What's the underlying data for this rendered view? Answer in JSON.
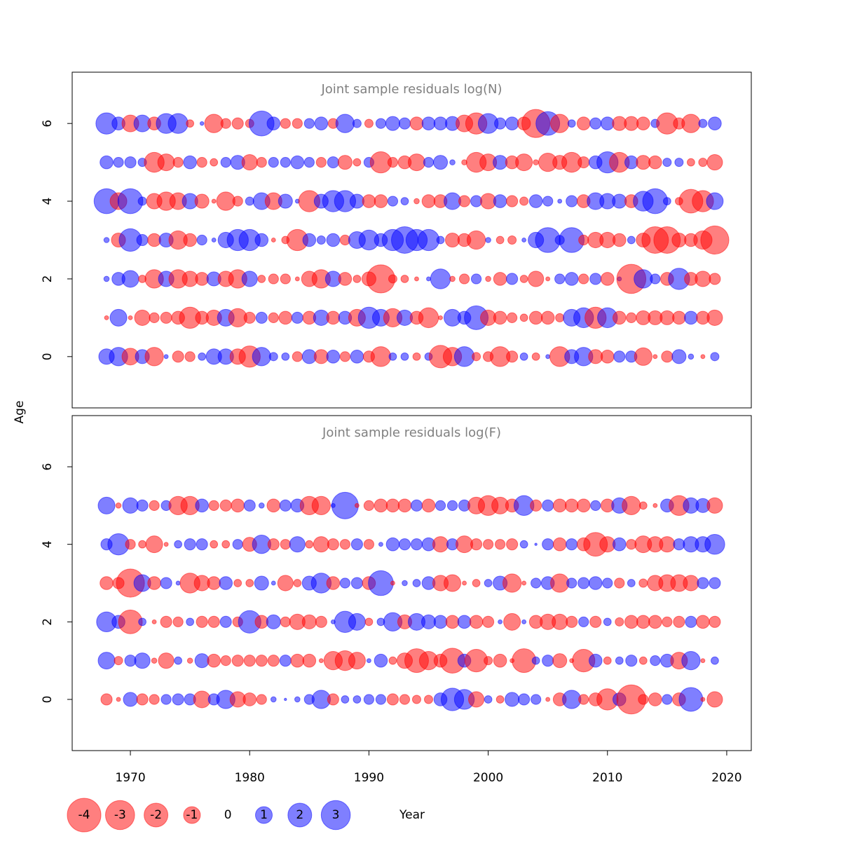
{
  "chart_data": [
    {
      "type": "bubble",
      "title": "Joint sample residuals log(N)",
      "x": [
        1968,
        1969,
        1970,
        1971,
        1972,
        1973,
        1974,
        1975,
        1976,
        1977,
        1978,
        1979,
        1980,
        1981,
        1982,
        1983,
        1984,
        1985,
        1986,
        1987,
        1988,
        1989,
        1990,
        1991,
        1992,
        1993,
        1994,
        1995,
        1996,
        1997,
        1998,
        1999,
        2000,
        2001,
        2002,
        2003,
        2004,
        2005,
        2006,
        2007,
        2008,
        2009,
        2010,
        2011,
        2012,
        2013,
        2014,
        2015,
        2016,
        2017,
        2018,
        2019
      ],
      "ages": [
        0,
        1,
        2,
        3,
        4,
        5,
        6
      ],
      "values": [
        [
          0.85,
          1.2,
          -1,
          0.7,
          -1.2,
          0.06,
          -0.45,
          -0.35,
          0.2,
          0.85,
          0.85,
          -0.85,
          -1.6,
          1.2,
          0.25,
          0.2,
          -0.35,
          0.7,
          -0.7,
          0.6,
          -0.35,
          0.6,
          -0.45,
          -1.4,
          0.2,
          0.2,
          -0.2,
          0.2,
          -1.8,
          -1.2,
          1.4,
          -0.25,
          -0.35,
          -1.4,
          -0.45,
          0.2,
          -0.2,
          0.06,
          -1.4,
          0.7,
          1.2,
          -0.7,
          -0.6,
          0.45,
          0.45,
          -1.1,
          -0.06,
          -0.45,
          0.7,
          0.1,
          -0.06,
          0.25
        ],
        [
          -0.06,
          1,
          -0.06,
          -0.85,
          -0.35,
          -0.45,
          -0.6,
          -1.6,
          -0.6,
          -0.85,
          1,
          -1.2,
          -0.45,
          0.45,
          -0.35,
          -0.6,
          0.45,
          -0.6,
          0.85,
          -0.6,
          0.6,
          -1,
          1.6,
          1,
          -1.2,
          0.85,
          -0.6,
          -1.4,
          -0.06,
          1,
          0.6,
          2,
          -0.85,
          -0.6,
          -0.35,
          -0.2,
          -0.6,
          -0.6,
          -0.25,
          1,
          1.4,
          -1.6,
          1.4,
          -0.6,
          -0.35,
          -0.7,
          -0.7,
          -0.7,
          -0.6,
          0.6,
          -0.6,
          -0.85
        ],
        [
          0.1,
          0.6,
          1,
          -0.2,
          -1.2,
          0.85,
          -1.2,
          -0.85,
          -0.6,
          0.7,
          -0.85,
          -1.2,
          0.85,
          -0.2,
          -0.35,
          -0.35,
          -0.06,
          -0.85,
          -1.2,
          0.85,
          -0.6,
          -0.2,
          -0.7,
          -2.8,
          -0.25,
          -0.2,
          -0.06,
          0.06,
          1.4,
          -0.1,
          -0.35,
          0.35,
          -0.1,
          -0.6,
          0.45,
          -0.2,
          -0.85,
          -0.06,
          0.35,
          0.6,
          -0.35,
          0.45,
          -0.6,
          0.06,
          -3,
          1.2,
          0.35,
          -0.6,
          1.6,
          -0.6,
          -0.85,
          -0.45
        ],
        [
          0.1,
          -0.7,
          1.8,
          0.45,
          -0.6,
          0.7,
          -1.2,
          -0.6,
          0.35,
          0.06,
          0.85,
          1.6,
          1.6,
          0.6,
          -0.06,
          -0.2,
          -1.6,
          0.6,
          0.25,
          0.6,
          -0.35,
          1,
          1.4,
          0.6,
          1.6,
          2.5,
          1.6,
          1.6,
          0.2,
          -0.7,
          -0.6,
          -1.2,
          0.1,
          -0.2,
          -0.25,
          0.06,
          0.85,
          2.2,
          0.3,
          2.2,
          -0.35,
          -0.85,
          -0.85,
          -0.6,
          0.2,
          -0.7,
          -2.5,
          -2.5,
          -0.7,
          -0.6,
          -1.2,
          -2.8
        ],
        [
          2.2,
          -1,
          2.2,
          0.25,
          -0.85,
          -1.2,
          -1,
          0.85,
          -0.7,
          -0.06,
          -1.2,
          -0.35,
          0.25,
          1,
          -1,
          0.7,
          0.06,
          -1.6,
          0.7,
          1.6,
          1.6,
          0.7,
          -0.6,
          -0.6,
          0.35,
          0.2,
          -0.1,
          -0.6,
          -0.6,
          1,
          -0.45,
          0.45,
          -0.85,
          0.6,
          -0.45,
          -0.25,
          0.6,
          0.35,
          0.06,
          0.45,
          -0.6,
          1,
          0.85,
          0.7,
          -0.6,
          1.4,
          2.2,
          0.2,
          -0.2,
          -2,
          -1.6,
          1
        ],
        [
          0.6,
          0.35,
          0.45,
          0.25,
          -1.4,
          -1,
          -0.35,
          0.6,
          -0.35,
          -0.2,
          0.35,
          0.7,
          -0.85,
          -0.35,
          0.35,
          0.35,
          0.6,
          0.35,
          -0.35,
          0.45,
          -0.7,
          -0.2,
          0.35,
          -1.6,
          -0.35,
          -0.6,
          -1,
          0.35,
          0.7,
          0.1,
          -0.1,
          -1.4,
          -1,
          0.7,
          -0.6,
          -1,
          -0.1,
          -1.2,
          -0.7,
          -1.4,
          -0.45,
          0.6,
          1.6,
          -1.4,
          0.6,
          -0.7,
          -0.6,
          0.25,
          0.25,
          -0.2,
          -0.25,
          -0.85
        ],
        [
          1.6,
          0.6,
          -1,
          1,
          -0.6,
          1.4,
          1.4,
          -0.2,
          0.05,
          -1.2,
          -0.35,
          -0.45,
          -0.25,
          2.2,
          0.6,
          -0.35,
          -0.35,
          0.35,
          0.6,
          -0.35,
          1.2,
          0.25,
          -0.25,
          0.35,
          0.7,
          0.45,
          -0.6,
          0.6,
          0.6,
          0.7,
          -1,
          -1.6,
          1.4,
          0.45,
          0.6,
          -0.6,
          -2.8,
          2,
          -1.2,
          0.2,
          -0.6,
          0.45,
          0.6,
          -0.7,
          -0.7,
          -0.6,
          0.25,
          -1.6,
          -0.45,
          -1.2,
          0.25,
          0.6
        ]
      ],
      "xlim": [
        1965.12,
        2022.06
      ],
      "ylim": [
        -1.32,
        7.32
      ],
      "yticks": [
        0,
        2,
        4,
        6
      ]
    },
    {
      "type": "bubble",
      "title": "Joint sample residuals log(F)",
      "x": [
        1968,
        1969,
        1970,
        1971,
        1972,
        1973,
        1974,
        1975,
        1976,
        1977,
        1978,
        1979,
        1980,
        1981,
        1982,
        1983,
        1984,
        1985,
        1986,
        1987,
        1988,
        1989,
        1990,
        1991,
        1992,
        1993,
        1994,
        1995,
        1996,
        1997,
        1998,
        1999,
        2000,
        2001,
        2002,
        2003,
        2004,
        2005,
        2006,
        2007,
        2008,
        2009,
        2010,
        2011,
        2012,
        2013,
        2014,
        2015,
        2016,
        2017,
        2018,
        2019
      ],
      "ages": [
        0,
        1,
        2,
        3,
        4,
        5
      ],
      "values": [
        [
          -0.45,
          -0.06,
          0.7,
          -0.45,
          -0.35,
          0.35,
          0.45,
          0.45,
          -1,
          0.45,
          1.2,
          -0.85,
          -0.6,
          -0.35,
          0.1,
          0.02,
          0.1,
          0.35,
          1.2,
          -0.45,
          0.2,
          0.2,
          0.35,
          0.35,
          -0.45,
          -0.35,
          -0.25,
          -0.25,
          0.6,
          1.8,
          1.4,
          -0.85,
          0.2,
          -0.2,
          0.7,
          0.45,
          0.35,
          -0.06,
          -0.6,
          1.2,
          -0.35,
          -0.6,
          -1.6,
          0.6,
          -3,
          -0.35,
          -0.6,
          0.35,
          -0.6,
          2,
          -0.06,
          -0.85
        ],
        [
          1,
          -0.25,
          0.45,
          0.85,
          -0.1,
          -0.85,
          0.2,
          -0.1,
          0.7,
          -0.6,
          -0.35,
          -0.45,
          -0.45,
          -0.45,
          -0.45,
          0.45,
          -0.6,
          -0.6,
          -0.06,
          -1.2,
          -1.4,
          -1,
          0.06,
          0.6,
          -0.2,
          -0.85,
          -2,
          -1.2,
          -0.6,
          -2.2,
          0.6,
          -1.8,
          -0.25,
          -0.6,
          -0.06,
          -2,
          0.2,
          0.45,
          -0.7,
          -0.06,
          -1.8,
          0.6,
          -0.2,
          0.2,
          0.45,
          -0.2,
          0.35,
          0.6,
          -1,
          1.2,
          -0.06,
          0.2
        ],
        [
          1.4,
          0.6,
          -2,
          0.2,
          -0.06,
          -0.45,
          -0.35,
          0.2,
          -0.45,
          -0.45,
          0.45,
          -0.35,
          1.8,
          -0.6,
          0.7,
          -0.35,
          -0.85,
          -0.7,
          -0.45,
          0.06,
          1.6,
          1,
          -0.2,
          0.2,
          1.2,
          -0.7,
          1,
          0.7,
          0.6,
          -0.6,
          0.6,
          -0.6,
          -0.45,
          0.06,
          -1,
          0.06,
          -0.6,
          -0.85,
          -0.85,
          -0.45,
          0.35,
          -0.45,
          0.2,
          -0.25,
          -0.6,
          -0.6,
          -0.6,
          -0.35,
          -0.45,
          0.45,
          -0.6,
          -0.45
        ],
        [
          -0.6,
          -0.45,
          -2.8,
          1,
          -0.6,
          0.45,
          0.06,
          -1.4,
          -0.85,
          -0.6,
          0.6,
          -0.2,
          -0.2,
          0.7,
          0.06,
          -0.85,
          -0.2,
          0.7,
          1.4,
          -0.6,
          0.35,
          0.45,
          -0.6,
          2.2,
          -0.06,
          0.1,
          0.2,
          0.6,
          -0.85,
          -1,
          -0.06,
          -0.2,
          0.2,
          0.7,
          -1.2,
          -0.06,
          0.35,
          0.6,
          -1.2,
          0.35,
          0.45,
          0.6,
          0.35,
          -0.35,
          0.2,
          -0.25,
          -0.85,
          -1,
          -1,
          -0.85,
          0.45,
          0.45
        ],
        [
          0.45,
          1.6,
          -0.35,
          -0.2,
          -1,
          -0.06,
          0.2,
          0.45,
          0.45,
          -0.2,
          -0.2,
          0.35,
          -0.7,
          1.2,
          -0.45,
          -0.35,
          0.85,
          -0.2,
          -0.85,
          -0.45,
          -0.35,
          0.45,
          -0.35,
          0.06,
          0.6,
          0.45,
          0.45,
          0.6,
          -0.85,
          0.45,
          -1,
          -0.45,
          -0.35,
          -0.35,
          -0.45,
          0.2,
          0.02,
          0.45,
          -0.6,
          0.45,
          -0.6,
          -2,
          -0.85,
          0.6,
          -0.35,
          -1,
          -0.85,
          -0.85,
          0.45,
          0.85,
          0.85,
          1.4
        ],
        [
          1,
          -0.1,
          0.85,
          0.45,
          -0.35,
          0.35,
          -1.2,
          -1.2,
          0.6,
          -0.35,
          -0.45,
          -0.6,
          0.45,
          0.1,
          -0.6,
          0.45,
          0.6,
          -1.2,
          -1.2,
          0.06,
          2.5,
          -0.06,
          -0.35,
          -0.6,
          -0.6,
          -0.6,
          0.45,
          -0.6,
          0.35,
          0.35,
          0.45,
          -1,
          -1.4,
          -1,
          -0.6,
          1.4,
          -0.45,
          0.45,
          -0.6,
          -0.6,
          -0.6,
          0.35,
          -0.6,
          0.85,
          -1.2,
          -0.2,
          -0.06,
          0.6,
          -1.4,
          0.85,
          0.7,
          -0.85
        ]
      ],
      "xlim": [
        1965.12,
        2022.06
      ],
      "ylim": [
        -1.32,
        7.32
      ],
      "yticks": [
        0,
        2,
        4,
        6
      ],
      "xticks": [
        1970,
        1980,
        1990,
        2000,
        2010,
        2020
      ]
    }
  ],
  "y_label": "Age",
  "x_label": "Year",
  "positive_color": "#0000ff",
  "negative_color": "#ff0000",
  "legend": {
    "values": [
      -4,
      -3,
      -2,
      -1,
      0,
      1,
      2,
      3
    ]
  }
}
